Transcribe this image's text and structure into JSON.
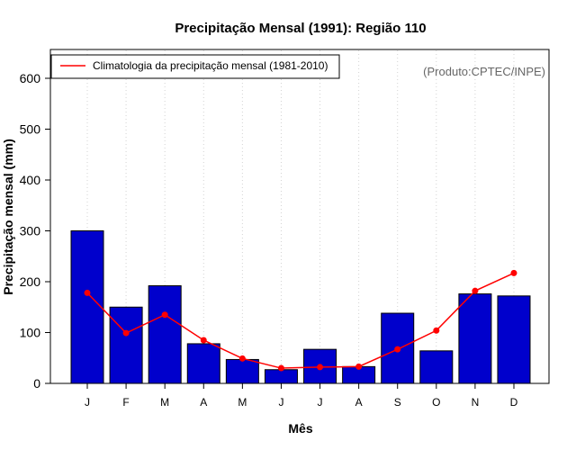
{
  "chart_data": {
    "type": "bar",
    "title": "Precipitação Mensal (1991): Região 110",
    "xlabel": "Mês",
    "ylabel": "Precipitação mensal (mm)",
    "categories": [
      "J",
      "F",
      "M",
      "A",
      "M",
      "J",
      "J",
      "A",
      "S",
      "O",
      "N",
      "D"
    ],
    "ylim": [
      0,
      650
    ],
    "yticks": [
      0,
      100,
      200,
      300,
      400,
      500,
      600
    ],
    "series": [
      {
        "name": "Precipitação mensal (1991)",
        "type": "bar",
        "color": "#0000cc",
        "values": [
          300,
          150,
          192,
          78,
          47,
          27,
          67,
          33,
          138,
          64,
          176,
          172
        ]
      },
      {
        "name": "Climatologia da precipitação mensal (1981-2010)",
        "type": "line",
        "color": "#ff0000",
        "values": [
          178,
          99,
          135,
          85,
          49,
          30,
          32,
          33,
          67,
          104,
          182,
          217
        ]
      }
    ],
    "legend": {
      "position": "top-left",
      "label": "Climatologia da precipitação mensal (1981-2010)"
    },
    "annotation": "(Produto:CPTEC/INPE)",
    "grid": "vertical-dotted"
  }
}
